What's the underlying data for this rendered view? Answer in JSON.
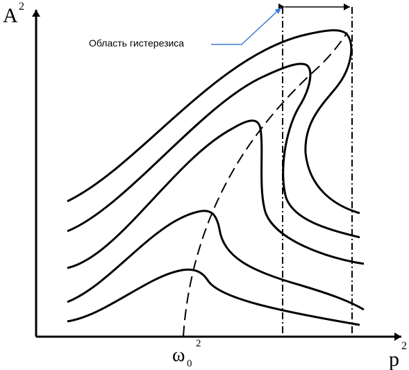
{
  "axes": {
    "y_label": "A",
    "y_label_power": "2",
    "x_label": "p",
    "x_label_power": "2",
    "x_tick_symbol": "ω",
    "x_tick_subscript": "0",
    "x_tick_power": "2"
  },
  "annotation": {
    "text": "Область гистерезиса",
    "arrow_color": "#3a7bd5"
  },
  "colors": {
    "curve": "#000000",
    "leader": "#3a7bd5"
  }
}
